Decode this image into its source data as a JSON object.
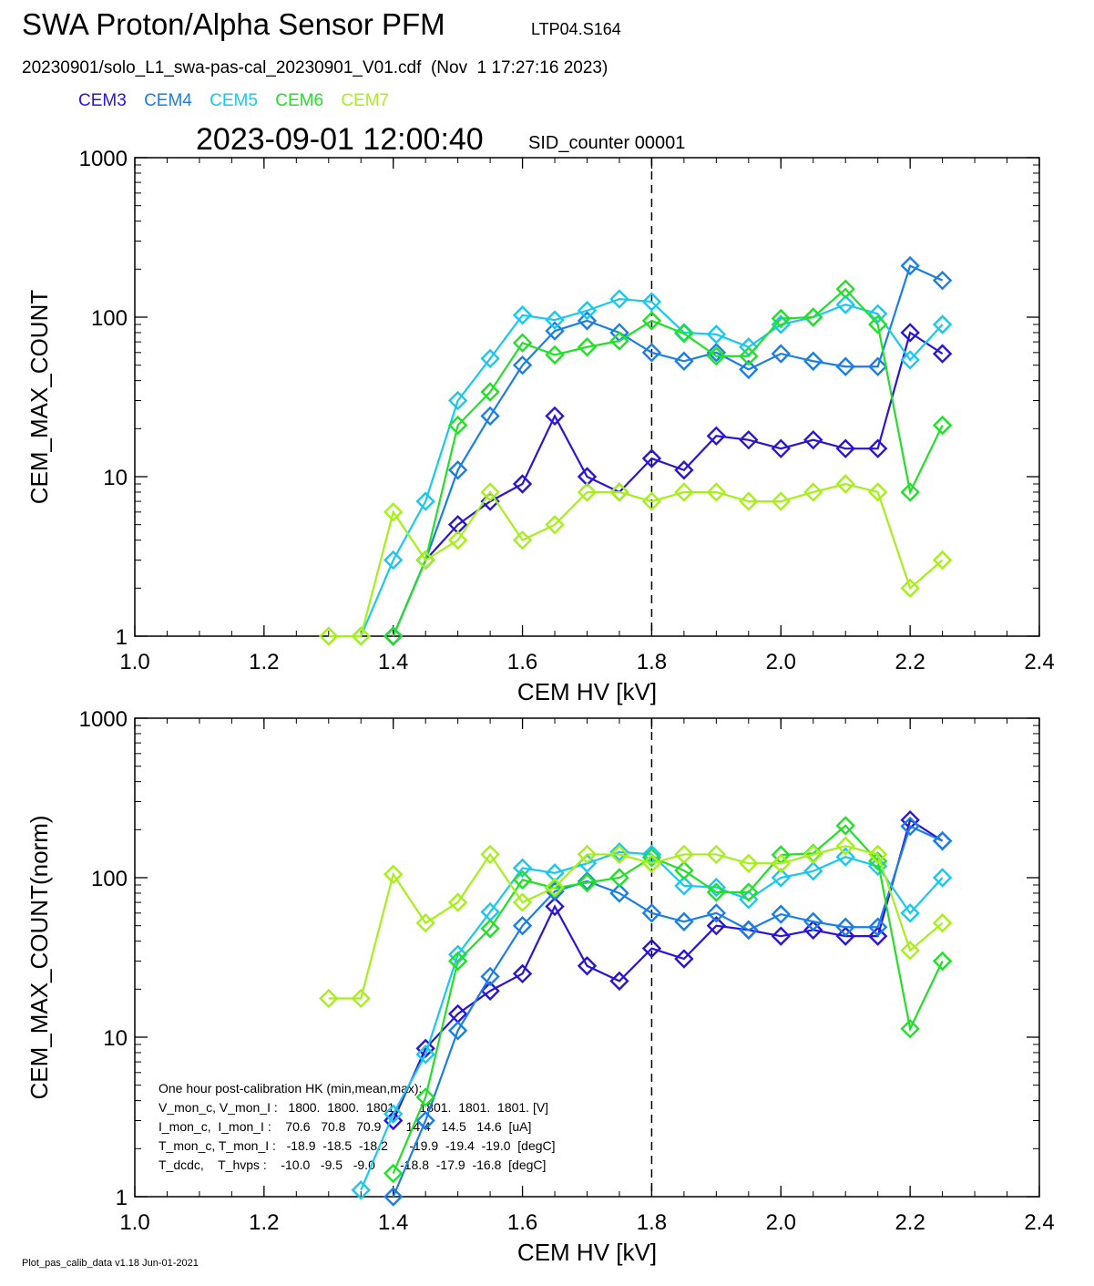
{
  "header": {
    "title": "SWA Proton/Alpha Sensor PFM",
    "run_id": "LTP04.S164",
    "file_line": "20230901/solo_L1_swa-pas-cal_20230901_V01.cdf  (Nov  1 17:27:16 2023)",
    "timestamp": "2023-09-01 12:00:40",
    "sid_counter": "SID_counter 00001"
  },
  "legend": [
    {
      "name": "CEM3",
      "color": "#2a14d8"
    },
    {
      "name": "CEM4",
      "color": "#1a7ee6"
    },
    {
      "name": "CEM5",
      "color": "#18c8f0"
    },
    {
      "name": "CEM6",
      "color": "#22e028"
    },
    {
      "name": "CEM7",
      "color": "#a6f01a"
    }
  ],
  "footer": "Plot_pas_calib_data v1.18 Jun-01-2021",
  "chart_data": [
    {
      "type": "line",
      "xlabel": "CEM HV [kV]",
      "ylabel": "CEM_MAX_COUNT",
      "xlim": [
        1.0,
        2.4
      ],
      "ylim": [
        1,
        1000
      ],
      "yscale": "log",
      "x_ticks": [
        "1.0",
        "1.2",
        "1.4",
        "1.6",
        "1.8",
        "2.0",
        "2.2",
        "2.4"
      ],
      "y_ticks": [
        "1",
        "10",
        "100",
        "1000"
      ],
      "reference_line_x": 1.8,
      "series": [
        {
          "name": "CEM3",
          "color": "#2a14d8",
          "x": [
            1.4,
            1.45,
            1.5,
            1.55,
            1.6,
            1.65,
            1.7,
            1.75,
            1.8,
            1.85,
            1.9,
            1.95,
            2.0,
            2.05,
            2.1,
            2.15,
            2.2,
            2.25
          ],
          "values": [
            1,
            3,
            5,
            7,
            9,
            24,
            10,
            8,
            13,
            11,
            18,
            17,
            15,
            17,
            15,
            15,
            80,
            59
          ]
        },
        {
          "name": "CEM4",
          "color": "#1a7ee6",
          "x": [
            1.4,
            1.45,
            1.5,
            1.55,
            1.6,
            1.65,
            1.7,
            1.75,
            1.8,
            1.85,
            1.9,
            1.95,
            2.0,
            2.05,
            2.1,
            2.15,
            2.2,
            2.25
          ],
          "values": [
            1,
            3,
            11,
            24,
            50,
            82,
            95,
            80,
            60,
            53,
            60,
            47,
            59,
            53,
            49,
            49,
            210,
            170
          ]
        },
        {
          "name": "CEM5",
          "color": "#18c8f0",
          "x": [
            1.35,
            1.4,
            1.45,
            1.5,
            1.55,
            1.6,
            1.65,
            1.7,
            1.75,
            1.8,
            1.85,
            1.9,
            1.95,
            2.0,
            2.05,
            2.1,
            2.15,
            2.2,
            2.25
          ],
          "values": [
            1,
            3,
            7,
            30,
            55,
            103,
            96,
            110,
            130,
            125,
            80,
            78,
            65,
            90,
            100,
            120,
            105,
            54,
            90
          ]
        },
        {
          "name": "CEM6",
          "color": "#22e028",
          "x": [
            1.4,
            1.45,
            1.5,
            1.55,
            1.6,
            1.65,
            1.7,
            1.75,
            1.8,
            1.85,
            1.9,
            1.95,
            2.0,
            2.05,
            2.1,
            2.15,
            2.2,
            2.25
          ],
          "values": [
            1,
            3,
            21,
            34,
            69,
            58,
            65,
            71,
            95,
            79,
            57,
            57,
            98,
            100,
            150,
            90,
            8,
            21
          ]
        },
        {
          "name": "CEM7",
          "color": "#a6f01a",
          "x": [
            1.3,
            1.35,
            1.4,
            1.45,
            1.5,
            1.55,
            1.6,
            1.65,
            1.7,
            1.75,
            1.8,
            1.85,
            1.9,
            1.95,
            2.0,
            2.05,
            2.1,
            2.15,
            2.2,
            2.25
          ],
          "values": [
            1,
            1,
            6,
            3,
            4,
            8,
            4,
            5,
            8,
            8,
            7,
            8,
            8,
            7,
            7,
            8,
            9,
            8,
            2,
            3
          ]
        }
      ]
    },
    {
      "type": "line",
      "xlabel": "CEM HV [kV]",
      "ylabel": "CEM_MAX_COUNT(norm)",
      "xlim": [
        1.0,
        2.4
      ],
      "ylim": [
        1,
        1000
      ],
      "yscale": "log",
      "x_ticks": [
        "1.0",
        "1.2",
        "1.4",
        "1.6",
        "1.8",
        "2.0",
        "2.2",
        "2.4"
      ],
      "y_ticks": [
        "1",
        "10",
        "100",
        "1000"
      ],
      "reference_line_x": 1.8,
      "series": [
        {
          "name": "CEM3",
          "color": "#2a14d8",
          "x": [
            1.4,
            1.45,
            1.5,
            1.55,
            1.6,
            1.65,
            1.7,
            1.75,
            1.8,
            1.85,
            1.9,
            1.95,
            2.0,
            2.05,
            2.1,
            2.15,
            2.2,
            2.25
          ],
          "values": [
            3,
            8.5,
            14,
            19.5,
            25,
            66,
            28,
            22.5,
            36,
            31,
            50,
            47,
            43,
            47,
            43,
            43,
            230,
            170
          ]
        },
        {
          "name": "CEM4",
          "color": "#1a7ee6",
          "x": [
            1.4,
            1.45,
            1.5,
            1.55,
            1.6,
            1.65,
            1.7,
            1.75,
            1.8,
            1.85,
            1.9,
            1.95,
            2.0,
            2.05,
            2.1,
            2.15,
            2.2,
            2.25
          ],
          "values": [
            1,
            3,
            11,
            24,
            50,
            82,
            95,
            80,
            60,
            53,
            60,
            47,
            59,
            53,
            49,
            49,
            210,
            170
          ]
        },
        {
          "name": "CEM5",
          "color": "#18c8f0",
          "x": [
            1.35,
            1.4,
            1.45,
            1.5,
            1.55,
            1.6,
            1.65,
            1.7,
            1.75,
            1.8,
            1.85,
            1.9,
            1.95,
            2.0,
            2.05,
            2.1,
            2.15,
            2.2,
            2.25
          ],
          "values": [
            1.1,
            3.3,
            7.8,
            33,
            61,
            115,
            107,
            123,
            145,
            140,
            89,
            87,
            73,
            100,
            110,
            135,
            118,
            60,
            100
          ]
        },
        {
          "name": "CEM6",
          "color": "#22e028",
          "x": [
            1.4,
            1.45,
            1.5,
            1.55,
            1.6,
            1.65,
            1.7,
            1.75,
            1.8,
            1.85,
            1.9,
            1.95,
            2.0,
            2.05,
            2.1,
            2.15,
            2.2,
            2.25
          ],
          "values": [
            1.4,
            4.2,
            30,
            48,
            97,
            86,
            93,
            100,
            134,
            111,
            81,
            81,
            139,
            142,
            212,
            127,
            11.3,
            30
          ]
        },
        {
          "name": "CEM7",
          "color": "#a6f01a",
          "x": [
            1.3,
            1.35,
            1.4,
            1.45,
            1.5,
            1.55,
            1.6,
            1.65,
            1.7,
            1.75,
            1.8,
            1.85,
            1.9,
            1.95,
            2.0,
            2.05,
            2.1,
            2.15,
            2.2,
            2.25
          ],
          "values": [
            17.5,
            17.5,
            105,
            52,
            70,
            140,
            70,
            87,
            140,
            140,
            123,
            140,
            140,
            123,
            123,
            140,
            158,
            140,
            35,
            52
          ]
        }
      ],
      "annotation_lines": [
        "One hour post-calibration HK (min,mean,max):",
        "V_mon_c, V_mon_I :   1800.  1800.  1801.      1801.  1801.  1801. [V]",
        "I_mon_c,  I_mon_I :    70.6   70.8   70.9       14.4   14.5   14.6  [uA]",
        "T_mon_c, T_mon_I :   -18.9  -18.5  -18.2      -19.9  -19.4  -19.0  [degC]",
        "T_dcdc,    T_hvps :    -10.0   -9.5   -9.0       -18.8  -17.9  -16.8  [degC]"
      ]
    }
  ]
}
